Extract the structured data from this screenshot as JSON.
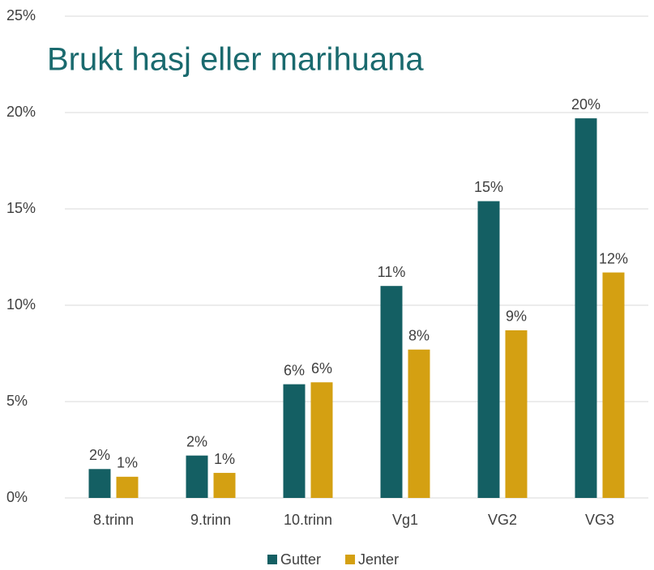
{
  "chart_data": {
    "type": "bar",
    "title": "Brukt hasj eller marihuana",
    "categories": [
      "8.trinn",
      "9.trinn",
      "10.trinn",
      "Vg1",
      "VG2",
      "VG3"
    ],
    "series": [
      {
        "name": "Gutter",
        "color": "#145f63",
        "values": [
          1.5,
          2.2,
          5.9,
          11.0,
          15.4,
          19.7
        ],
        "value_labels": [
          "2%",
          "2%",
          "6%",
          "11%",
          "15%",
          "20%"
        ]
      },
      {
        "name": "Jenter",
        "color": "#d4a012",
        "values": [
          1.1,
          1.3,
          6.0,
          7.7,
          8.7,
          11.7
        ],
        "value_labels": [
          "1%",
          "1%",
          "6%",
          "8%",
          "9%",
          "12%"
        ]
      }
    ],
    "ylim": [
      0,
      25
    ],
    "yticks": [
      {
        "value": 0,
        "label": "0%"
      },
      {
        "value": 5,
        "label": "5%"
      },
      {
        "value": 10,
        "label": "10%"
      },
      {
        "value": 15,
        "label": "15%"
      },
      {
        "value": 20,
        "label": "20%"
      },
      {
        "value": 25,
        "label": "25%"
      }
    ],
    "grid": true,
    "legend": "bottom"
  }
}
